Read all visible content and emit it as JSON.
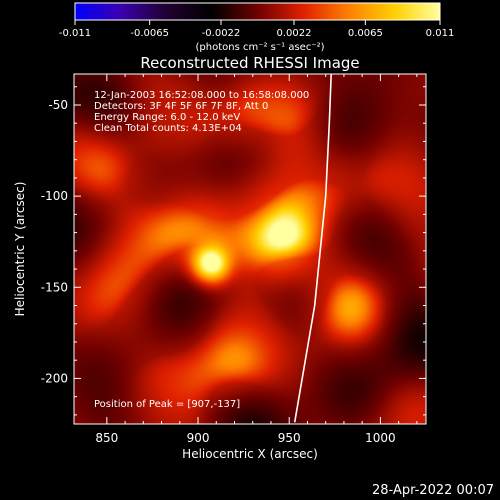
{
  "colorbar": {
    "ticks": [
      "-0.011",
      "-0.0065",
      "-0.0022",
      "0.0022",
      "0.0065",
      "0.011"
    ],
    "units": "(photons cm⁻² s⁻¹ asec⁻²)",
    "range": [
      -0.011,
      0.011
    ],
    "colormap": [
      "#0000ff",
      "#3a00b0",
      "#200030",
      "#000000",
      "#6e0000",
      "#e02000",
      "#ff8000",
      "#ffd000",
      "#ffffa0"
    ]
  },
  "chart_data": {
    "type": "heatmap",
    "title": "Reconstructed RHESSI Image",
    "xlabel": "Heliocentric X (arcsec)",
    "ylabel": "Heliocentric Y (arcsec)",
    "xlim": [
      832,
      1025
    ],
    "ylim": [
      -225,
      -33
    ],
    "x_ticks": [
      850,
      900,
      950,
      1000
    ],
    "y_ticks": [
      -50,
      -100,
      -150,
      -200
    ],
    "annotations": [
      "12-Jan-2003 16:52:08.000 to 16:58:08.000",
      "Detectors: 3F 4F 5F 6F 7F 8F, Att 0",
      "Energy Range: 6.0 - 12.0 keV",
      "Clean     Total counts: 4.13E+04"
    ],
    "peak_label": "Position of Peak = [907,-137]",
    "peak": [
      907,
      -137
    ],
    "sources": [
      {
        "x": 907,
        "y": -137,
        "sigma": 7,
        "value": 0.011
      },
      {
        "x": 900,
        "y": -120,
        "sigma": 17,
        "value": 0.0045
      },
      {
        "x": 945,
        "y": -130,
        "sigma": 14,
        "value": 0.005
      },
      {
        "x": 935,
        "y": -95,
        "sigma": 16,
        "value": 0.003
      },
      {
        "x": 955,
        "y": -75,
        "sigma": 14,
        "value": 0.0026
      },
      {
        "x": 870,
        "y": -165,
        "sigma": 18,
        "value": 0.0025
      },
      {
        "x": 915,
        "y": -200,
        "sigma": 14,
        "value": 0.0022
      },
      {
        "x": 975,
        "y": -155,
        "sigma": 18,
        "value": 0.0024
      },
      {
        "x": 980,
        "y": -90,
        "sigma": 14,
        "value": 0.0018
      },
      {
        "x": 858,
        "y": -90,
        "sigma": 14,
        "value": 0.0017
      },
      {
        "x": 920,
        "y": -60,
        "sigma": 12,
        "value": 0.0016
      }
    ],
    "limb": [
      [
        953,
        -224
      ],
      [
        964,
        -160
      ],
      [
        970,
        -100
      ],
      [
        972,
        -60
      ],
      [
        973,
        -33
      ]
    ]
  },
  "timestamp": "28-Apr-2022 00:07"
}
